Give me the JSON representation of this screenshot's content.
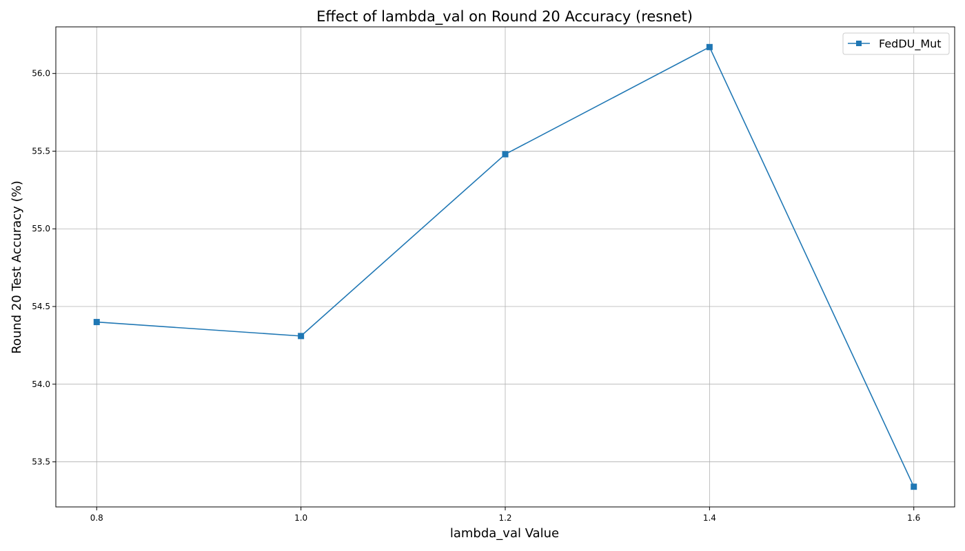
{
  "chart_data": {
    "type": "line",
    "title": "Effect of lambda_val on Round 20 Accuracy (resnet)",
    "xlabel": "lambda_val Value",
    "ylabel": "Round 20 Test Accuracy (%)",
    "x": [
      0.8,
      1.0,
      1.2,
      1.4,
      1.6
    ],
    "x_tick_labels": [
      "0.8",
      "1.0",
      "1.2",
      "1.4",
      "1.6"
    ],
    "y_ticks": [
      53.5,
      54.0,
      54.5,
      55.0,
      55.5,
      56.0
    ],
    "y_tick_labels": [
      "53.5",
      "54.0",
      "54.5",
      "55.0",
      "55.5",
      "56.0"
    ],
    "xlim": [
      0.76,
      1.64
    ],
    "ylim": [
      53.21,
      56.3
    ],
    "grid": true,
    "legend_position": "top-right",
    "series": [
      {
        "name": "FedDU_Mut",
        "values": [
          54.4,
          54.31,
          55.48,
          56.17,
          53.34
        ],
        "color": "#1f77b4",
        "marker": "square"
      }
    ]
  }
}
